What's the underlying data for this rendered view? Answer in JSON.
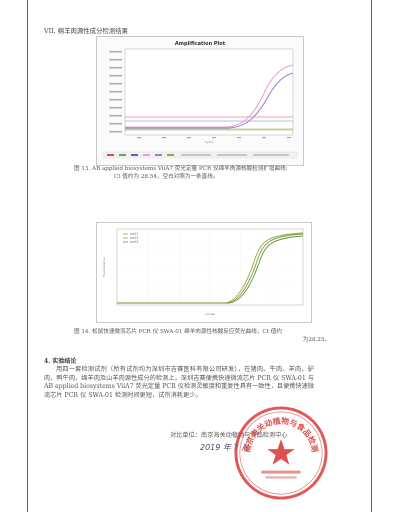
{
  "section_heading": "VII. 绵羊肉源性成分检测结果",
  "figure13": {
    "plot_title": "Amplification Plot",
    "x_label": "Cycle",
    "caption_line1": "图 13. AB applied biosystems ViiA7 荧光定量 PCR 仪绵羊肉源核酸检测扩增曲线:",
    "caption_line2": "Ct 值约为 28.54，空白对照为一条直线。"
  },
  "figure14": {
    "legend": [
      "well1",
      "well2",
      "well3"
    ],
    "x_label": "Cycles",
    "y_label": "Fluorescence",
    "caption_line1": "图 14. 松鼠快速微流芯片 PCR 仪 SWA-01 绵羊肉源性核酸反应荧光曲线，Ct 值约",
    "caption_line2": "为28.25。"
  },
  "conclusion": {
    "title": "4. 实验结论",
    "body": "用四一套检测试剂（所有试剂均为深圳市吉赛医科有限公司研发），在猪肉、牛肉、羊肉、驴肉、鸭牛肉、绵羊肉及山羊肉源性成分的检测上，深圳吉赛便携快速微流芯片 PCR 仪 SWA-01 与 AB applied biosystems ViiA7 荧光定量 PCR 仪检测灵敏度和重复性具有一致性，且便携快速微流芯片 PCR 仪 SWA-01 检测时间更短，试剂消耗更少。"
  },
  "signature": {
    "unit_line": "对比单位：南京海关动植物与食品检测中心",
    "date_handwritten": "2019 年 7 月"
  },
  "stamp": {
    "text": "南京海关动植物与食品检测中心"
  },
  "colors": {
    "stamp_red": "#d8342f",
    "curve_pink": "#e8a0c8",
    "curve_purple": "#9a7fd0",
    "curve_red": "#d94a4a",
    "curve_green": "#5faa55",
    "curve_olive": "#a5a032",
    "curve_blue": "#4a66c8"
  }
}
